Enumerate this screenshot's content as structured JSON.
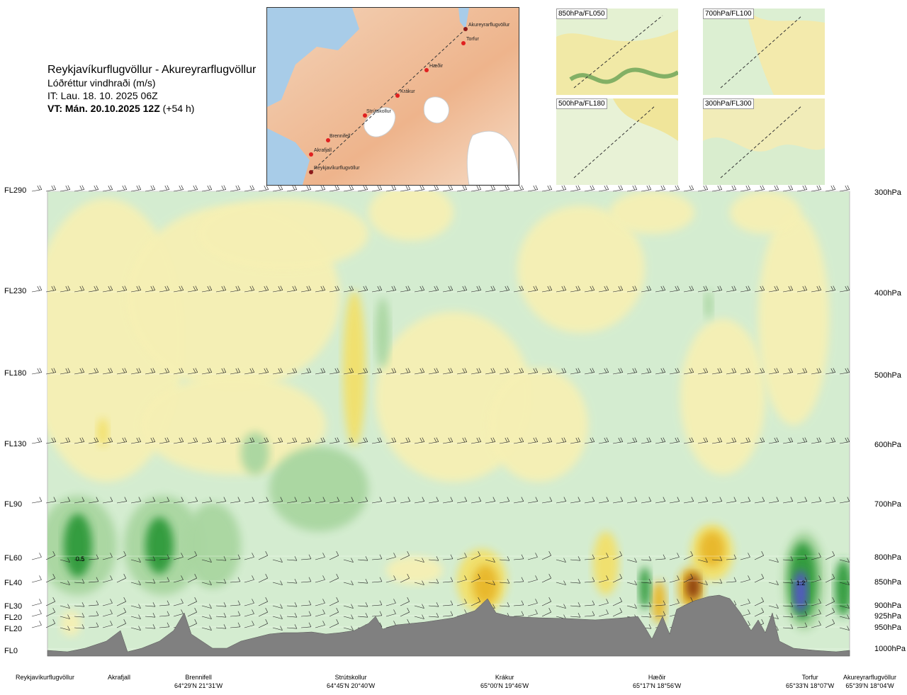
{
  "header": {
    "route": "Reykjavíkurflugvöllur - Akureyrarflugvöllur",
    "variable": "Lóðréttur vindhraði (m/s)",
    "issue_time": "IT: Lau. 18. 10. 2025 06Z",
    "valid_time_bold": "VT: Mán. 20.10.2025 12Z",
    "valid_time_offset": "(+54 h)"
  },
  "route_map": {
    "points": [
      "Akureyrarflugvöllur",
      "Torfur",
      "Hæðir",
      "Krákur",
      "Strútskollur",
      "Brennifell",
      "Akrafjall",
      "Reykjavíkurflugvöllur"
    ]
  },
  "mini_maps": [
    {
      "label": "850hPa/FL050"
    },
    {
      "label": "700hPa/FL100"
    },
    {
      "label": "500hPa/FL180"
    },
    {
      "label": "300hPa/FL300"
    }
  ],
  "flight_levels": [
    "FL290",
    "FL230",
    "FL180",
    "FL130",
    "FL90",
    "FL60",
    "FL40",
    "FL30",
    "FL20",
    "FL20",
    "FL0"
  ],
  "pressure_levels": [
    "300hPa",
    "400hPa",
    "500hPa",
    "600hPa",
    "700hPa",
    "800hPa",
    "850hPa",
    "900hPa",
    "925hPa",
    "950hPa",
    "1000hPa"
  ],
  "waypoints": [
    {
      "name": "Reykjavíkurflugvöllur",
      "coord": ""
    },
    {
      "name": "Akrafjall",
      "coord": ""
    },
    {
      "name": "Brennifell",
      "coord": "64°29'N 21°31'W"
    },
    {
      "name": "Strútskollur",
      "coord": "64°45'N 20°40'W"
    },
    {
      "name": "Krákur",
      "coord": "65°00'N 19°46'W"
    },
    {
      "name": "Hæðir",
      "coord": "65°17'N 18°56'W"
    },
    {
      "name": "Torfur",
      "coord": "65°33'N 18°07'W"
    },
    {
      "name": "Akureyrarflugvöllur",
      "coord": "65°39'N 18°04'W"
    }
  ],
  "chart_data": {
    "type": "heatmap",
    "title": "Lóðréttur vindhraði (m/s)",
    "x_categories": [
      "Reykjavíkurflugvöllur",
      "Akrafjall",
      "Brennifell",
      "Strútskollur",
      "Krákur",
      "Hæðir",
      "Torfur",
      "Akureyrarflugvöllur"
    ],
    "y_axis_left": [
      "FL0",
      "FL20",
      "FL20",
      "FL30",
      "FL40",
      "FL60",
      "FL90",
      "FL130",
      "FL180",
      "FL230",
      "FL290"
    ],
    "y_axis_right": [
      "1000hPa",
      "950hPa",
      "925hPa",
      "900hPa",
      "850hPa",
      "800hPa",
      "700hPa",
      "600hPa",
      "500hPa",
      "400hPa",
      "300hPa"
    ],
    "annotations": [
      {
        "text": "0.5",
        "location": "Akrafjall",
        "level": "FL60"
      },
      {
        "text": "1.2",
        "location": "Torfur",
        "level": "FL40"
      }
    ],
    "colors": {
      "downdraft_weak": "#d4ecd0",
      "downdraft_mid": "#a9d6a0",
      "downdraft_strong": "#2e9a3a",
      "downdraft_max": "#5454c8",
      "updraft_weak": "#f6f0b4",
      "updraft_mid": "#f2e06a",
      "updraft_strong": "#e8b72a",
      "updraft_max": "#8a3a10",
      "terrain": "#808080"
    }
  }
}
